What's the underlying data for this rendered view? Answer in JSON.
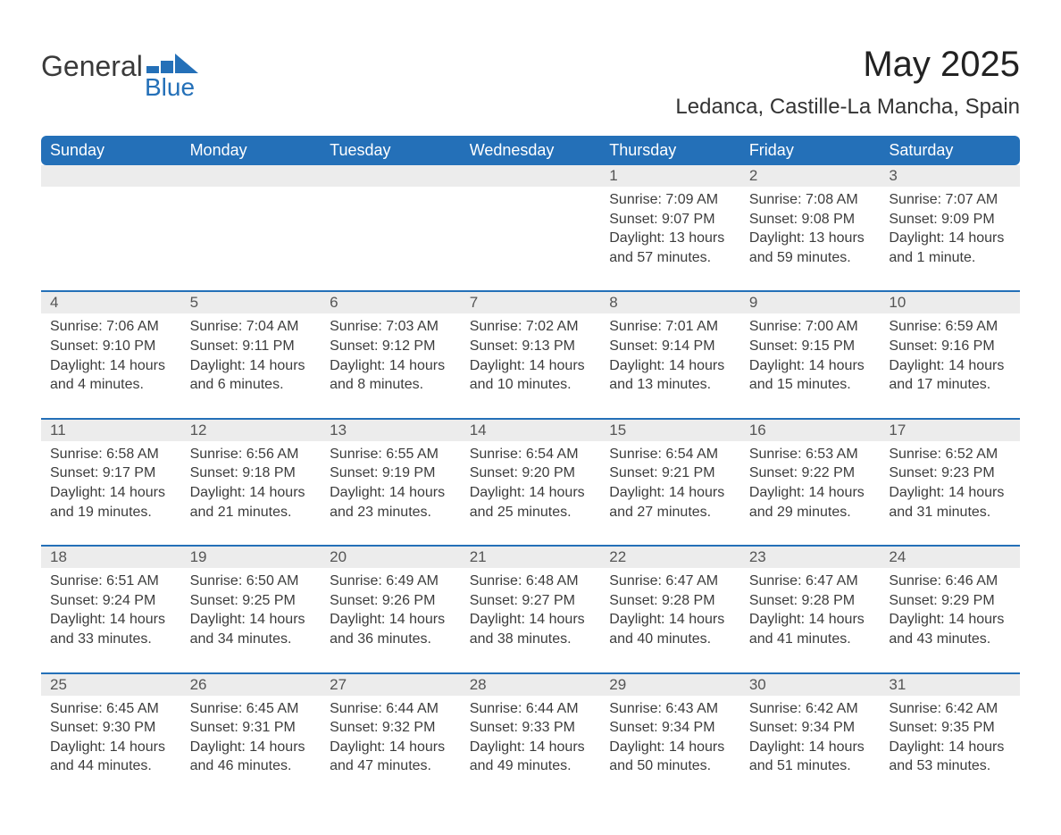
{
  "logo": {
    "word1": "General",
    "word2": "Blue"
  },
  "title": "May 2025",
  "location": "Ledanca, Castille-La Mancha, Spain",
  "colors": {
    "header_bg": "#2470b8",
    "header_text": "#ffffff",
    "daynum_bg": "#ececec",
    "body_text": "#3c3c3c",
    "rule": "#2470b8",
    "logo_blue": "#2470b8",
    "logo_gray": "#3a3a3a"
  },
  "weekdays": [
    "Sunday",
    "Monday",
    "Tuesday",
    "Wednesday",
    "Thursday",
    "Friday",
    "Saturday"
  ],
  "weeks": [
    [
      null,
      null,
      null,
      null,
      {
        "n": "1",
        "sr": "7:09 AM",
        "ss": "9:07 PM",
        "dl": "13 hours and 57 minutes."
      },
      {
        "n": "2",
        "sr": "7:08 AM",
        "ss": "9:08 PM",
        "dl": "13 hours and 59 minutes."
      },
      {
        "n": "3",
        "sr": "7:07 AM",
        "ss": "9:09 PM",
        "dl": "14 hours and 1 minute."
      }
    ],
    [
      {
        "n": "4",
        "sr": "7:06 AM",
        "ss": "9:10 PM",
        "dl": "14 hours and 4 minutes."
      },
      {
        "n": "5",
        "sr": "7:04 AM",
        "ss": "9:11 PM",
        "dl": "14 hours and 6 minutes."
      },
      {
        "n": "6",
        "sr": "7:03 AM",
        "ss": "9:12 PM",
        "dl": "14 hours and 8 minutes."
      },
      {
        "n": "7",
        "sr": "7:02 AM",
        "ss": "9:13 PM",
        "dl": "14 hours and 10 minutes."
      },
      {
        "n": "8",
        "sr": "7:01 AM",
        "ss": "9:14 PM",
        "dl": "14 hours and 13 minutes."
      },
      {
        "n": "9",
        "sr": "7:00 AM",
        "ss": "9:15 PM",
        "dl": "14 hours and 15 minutes."
      },
      {
        "n": "10",
        "sr": "6:59 AM",
        "ss": "9:16 PM",
        "dl": "14 hours and 17 minutes."
      }
    ],
    [
      {
        "n": "11",
        "sr": "6:58 AM",
        "ss": "9:17 PM",
        "dl": "14 hours and 19 minutes."
      },
      {
        "n": "12",
        "sr": "6:56 AM",
        "ss": "9:18 PM",
        "dl": "14 hours and 21 minutes."
      },
      {
        "n": "13",
        "sr": "6:55 AM",
        "ss": "9:19 PM",
        "dl": "14 hours and 23 minutes."
      },
      {
        "n": "14",
        "sr": "6:54 AM",
        "ss": "9:20 PM",
        "dl": "14 hours and 25 minutes."
      },
      {
        "n": "15",
        "sr": "6:54 AM",
        "ss": "9:21 PM",
        "dl": "14 hours and 27 minutes."
      },
      {
        "n": "16",
        "sr": "6:53 AM",
        "ss": "9:22 PM",
        "dl": "14 hours and 29 minutes."
      },
      {
        "n": "17",
        "sr": "6:52 AM",
        "ss": "9:23 PM",
        "dl": "14 hours and 31 minutes."
      }
    ],
    [
      {
        "n": "18",
        "sr": "6:51 AM",
        "ss": "9:24 PM",
        "dl": "14 hours and 33 minutes."
      },
      {
        "n": "19",
        "sr": "6:50 AM",
        "ss": "9:25 PM",
        "dl": "14 hours and 34 minutes."
      },
      {
        "n": "20",
        "sr": "6:49 AM",
        "ss": "9:26 PM",
        "dl": "14 hours and 36 minutes."
      },
      {
        "n": "21",
        "sr": "6:48 AM",
        "ss": "9:27 PM",
        "dl": "14 hours and 38 minutes."
      },
      {
        "n": "22",
        "sr": "6:47 AM",
        "ss": "9:28 PM",
        "dl": "14 hours and 40 minutes."
      },
      {
        "n": "23",
        "sr": "6:47 AM",
        "ss": "9:28 PM",
        "dl": "14 hours and 41 minutes."
      },
      {
        "n": "24",
        "sr": "6:46 AM",
        "ss": "9:29 PM",
        "dl": "14 hours and 43 minutes."
      }
    ],
    [
      {
        "n": "25",
        "sr": "6:45 AM",
        "ss": "9:30 PM",
        "dl": "14 hours and 44 minutes."
      },
      {
        "n": "26",
        "sr": "6:45 AM",
        "ss": "9:31 PM",
        "dl": "14 hours and 46 minutes."
      },
      {
        "n": "27",
        "sr": "6:44 AM",
        "ss": "9:32 PM",
        "dl": "14 hours and 47 minutes."
      },
      {
        "n": "28",
        "sr": "6:44 AM",
        "ss": "9:33 PM",
        "dl": "14 hours and 49 minutes."
      },
      {
        "n": "29",
        "sr": "6:43 AM",
        "ss": "9:34 PM",
        "dl": "14 hours and 50 minutes."
      },
      {
        "n": "30",
        "sr": "6:42 AM",
        "ss": "9:34 PM",
        "dl": "14 hours and 51 minutes."
      },
      {
        "n": "31",
        "sr": "6:42 AM",
        "ss": "9:35 PM",
        "dl": "14 hours and 53 minutes."
      }
    ]
  ],
  "labels": {
    "sunrise": "Sunrise: ",
    "sunset": "Sunset: ",
    "daylight": "Daylight: "
  }
}
